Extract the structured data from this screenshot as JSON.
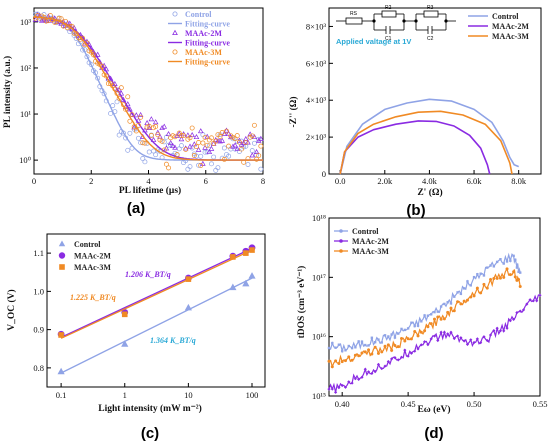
{
  "colors": {
    "control": "#8fa3e6",
    "maac2m": "#8a2be2",
    "maac3m": "#f08a24",
    "cyan": "#2aa9d6"
  },
  "chart_data": [
    {
      "type": "scatter",
      "panel": "(a)",
      "xlabel": "PL lifetime (μs)",
      "ylabel": "PL intensity (a.u.)",
      "xlim": [
        0,
        8
      ],
      "ylim": [
        0.5,
        2000
      ],
      "yscale": "log",
      "xticks": [
        "0",
        "2",
        "4",
        "6",
        "8"
      ],
      "yticks": [
        "10⁰",
        "10¹",
        "10²",
        "10³"
      ],
      "legend_position": "top-right",
      "legend": [
        "Control",
        "Fitting-curve",
        "MAAc-2M",
        "Fitting-curve",
        "MAAc-3M",
        "Fitting-curve"
      ],
      "series": [
        {
          "name": "Control",
          "marker": "circle",
          "tau": 0.3,
          "t0": 1.3
        },
        {
          "name": "MAAc-2M",
          "marker": "triangle",
          "tau": 0.4,
          "t0": 1.45
        },
        {
          "name": "MAAc-3M",
          "marker": "circle",
          "tau": 0.38,
          "t0": 1.4
        }
      ]
    },
    {
      "type": "line",
      "panel": "(b)",
      "xlabel": "Z' (Ω)",
      "ylabel": "-Z'' (Ω)",
      "xlim": [
        -500,
        9000
      ],
      "ylim": [
        0,
        9000
      ],
      "xticks": [
        "0.0",
        "2.0k",
        "4.0k",
        "6.0k",
        "8.0k"
      ],
      "yticks": [
        "0",
        "2×10³",
        "4×10³",
        "6×10³",
        "8×10³"
      ],
      "annotation": "Applied valtage at 1V",
      "circuit_labels": [
        "RS",
        "R2",
        "R3",
        "C1",
        "C2"
      ],
      "legend_position": "top-right",
      "series": [
        {
          "name": "Control",
          "x": [
            0,
            300,
            1000,
            2000,
            3000,
            4000,
            5000,
            6000,
            6800,
            7300,
            7600,
            7800,
            8000
          ],
          "y": [
            0,
            1500,
            2700,
            3500,
            3850,
            4050,
            3950,
            3500,
            2800,
            1800,
            900,
            500,
            400
          ]
        },
        {
          "name": "MAAc-2M",
          "x": [
            0,
            200,
            800,
            1500,
            2500,
            3500,
            4300,
            5100,
            5800,
            6300,
            6600,
            6700
          ],
          "y": [
            0,
            1200,
            2000,
            2400,
            2700,
            2880,
            2850,
            2600,
            2100,
            1400,
            500,
            0
          ]
        },
        {
          "name": "MAAc-3M",
          "x": [
            0,
            200,
            800,
            1500,
            2500,
            3500,
            4500,
            5500,
            6500,
            7200,
            7600,
            7700
          ],
          "y": [
            0,
            1200,
            2200,
            2700,
            3100,
            3350,
            3400,
            3200,
            2700,
            1800,
            600,
            0
          ]
        }
      ]
    },
    {
      "type": "scatter",
      "panel": "(c)",
      "xlabel": "Light intensity  (mW m⁻²)",
      "ylabel": "V_OC (V)",
      "xscale": "log",
      "xlim": [
        0.06,
        160
      ],
      "ylim": [
        0.75,
        1.15
      ],
      "xticks": [
        "0.1",
        "1",
        "10",
        "100"
      ],
      "yticks": [
        "0.8",
        "0.9",
        "1.0",
        "1.1"
      ],
      "legend_position": "top-left",
      "annotations": [
        "1.206 K_BT/q",
        "1.225 K_BT/q",
        "1.364 K_BT/q"
      ],
      "series": [
        {
          "name": "Control",
          "x": [
            0.1,
            1,
            10,
            50,
            80,
            100
          ],
          "y": [
            0.79,
            0.862,
            0.957,
            1.01,
            1.02,
            1.04
          ]
        },
        {
          "name": "MAAc-2M",
          "x": [
            0.1,
            1,
            10,
            50,
            80,
            100
          ],
          "y": [
            0.888,
            0.945,
            1.035,
            1.092,
            1.105,
            1.114
          ]
        },
        {
          "name": "MAAc-3M",
          "x": [
            0.1,
            1,
            10,
            50,
            80,
            100
          ],
          "y": [
            0.886,
            0.94,
            1.032,
            1.09,
            1.1,
            1.108
          ]
        }
      ]
    },
    {
      "type": "line",
      "panel": "(d)",
      "xlabel": "Eω  (eV)",
      "ylabel": "tDOS  (cm⁻³ eV⁻¹)",
      "yscale": "log",
      "xlim": [
        0.39,
        0.55
      ],
      "ylim": [
        1000000000000000.0,
        1e+18
      ],
      "xticks": [
        "0.40",
        "0.45",
        "0.50",
        "0.55"
      ],
      "yticks": [
        "10¹⁵",
        "10¹⁶",
        "10¹⁷",
        "10¹⁸"
      ],
      "legend_position": "top-left",
      "series": [
        {
          "name": "Control",
          "x": [
            0.39,
            0.4,
            0.41,
            0.42,
            0.43,
            0.44,
            0.45,
            0.46,
            0.47,
            0.48,
            0.49,
            0.5,
            0.51,
            0.52,
            0.53,
            0.535
          ],
          "y": [
            7000000000000000.0,
            6500000000000000.0,
            7000000000000000.0,
            8000000000000000.0,
            9000000000000000.0,
            1.1e+16,
            1.4e+16,
            1.9e+16,
            2.6e+16,
            3.8e+16,
            6e+16,
            9e+16,
            1.4e+17,
            1.9e+17,
            2.3e+17,
            1.2e+17
          ]
        },
        {
          "name": "MAAc-2M",
          "x": [
            0.39,
            0.4,
            0.41,
            0.42,
            0.43,
            0.44,
            0.45,
            0.46,
            0.47,
            0.48,
            0.49,
            0.5,
            0.51,
            0.52,
            0.53,
            0.54,
            0.55
          ],
          "y": [
            1300000000000000.0,
            1400000000000000.0,
            2000000000000000.0,
            2600000000000000.0,
            3200000000000000.0,
            4000000000000000.0,
            5500000000000000.0,
            7500000000000000.0,
            9500000000000000.0,
            1.1e+16,
            9000000000000000.0,
            8000000000000000.0,
            9000000000000000.0,
            1.3e+16,
            2e+16,
            3.2e+16,
            5e+16
          ]
        },
        {
          "name": "MAAc-3M",
          "x": [
            0.39,
            0.4,
            0.41,
            0.42,
            0.43,
            0.44,
            0.45,
            0.46,
            0.47,
            0.48,
            0.49,
            0.5,
            0.51,
            0.52,
            0.53,
            0.535
          ],
          "y": [
            3500000000000000.0,
            4000000000000000.0,
            4800000000000000.0,
            5500000000000000.0,
            6000000000000000.0,
            7000000000000000.0,
            9000000000000000.0,
            1.2e+16,
            1.7e+16,
            2.5e+16,
            3.8e+16,
            5.5e+16,
            7.5e+16,
            1.1e+17,
            1.3e+17,
            7e+16
          ]
        }
      ]
    }
  ]
}
